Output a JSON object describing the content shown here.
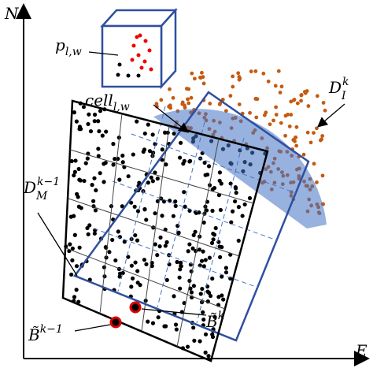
{
  "axes": {
    "x_label": "E",
    "y_label": "N"
  },
  "labels": {
    "point": {
      "base": "p",
      "sub": "l,w"
    },
    "cell": {
      "base": "cell",
      "sub": "l,w"
    },
    "map_region": {
      "base": "D",
      "sup": "k−1",
      "sub": "M"
    },
    "scan_region": {
      "base": "D",
      "sup": "k",
      "sub": "I"
    },
    "pose_current": {
      "base": "B̃",
      "sup": "k"
    },
    "pose_previous": {
      "base": "B̃",
      "sup": "k−1"
    }
  }
}
